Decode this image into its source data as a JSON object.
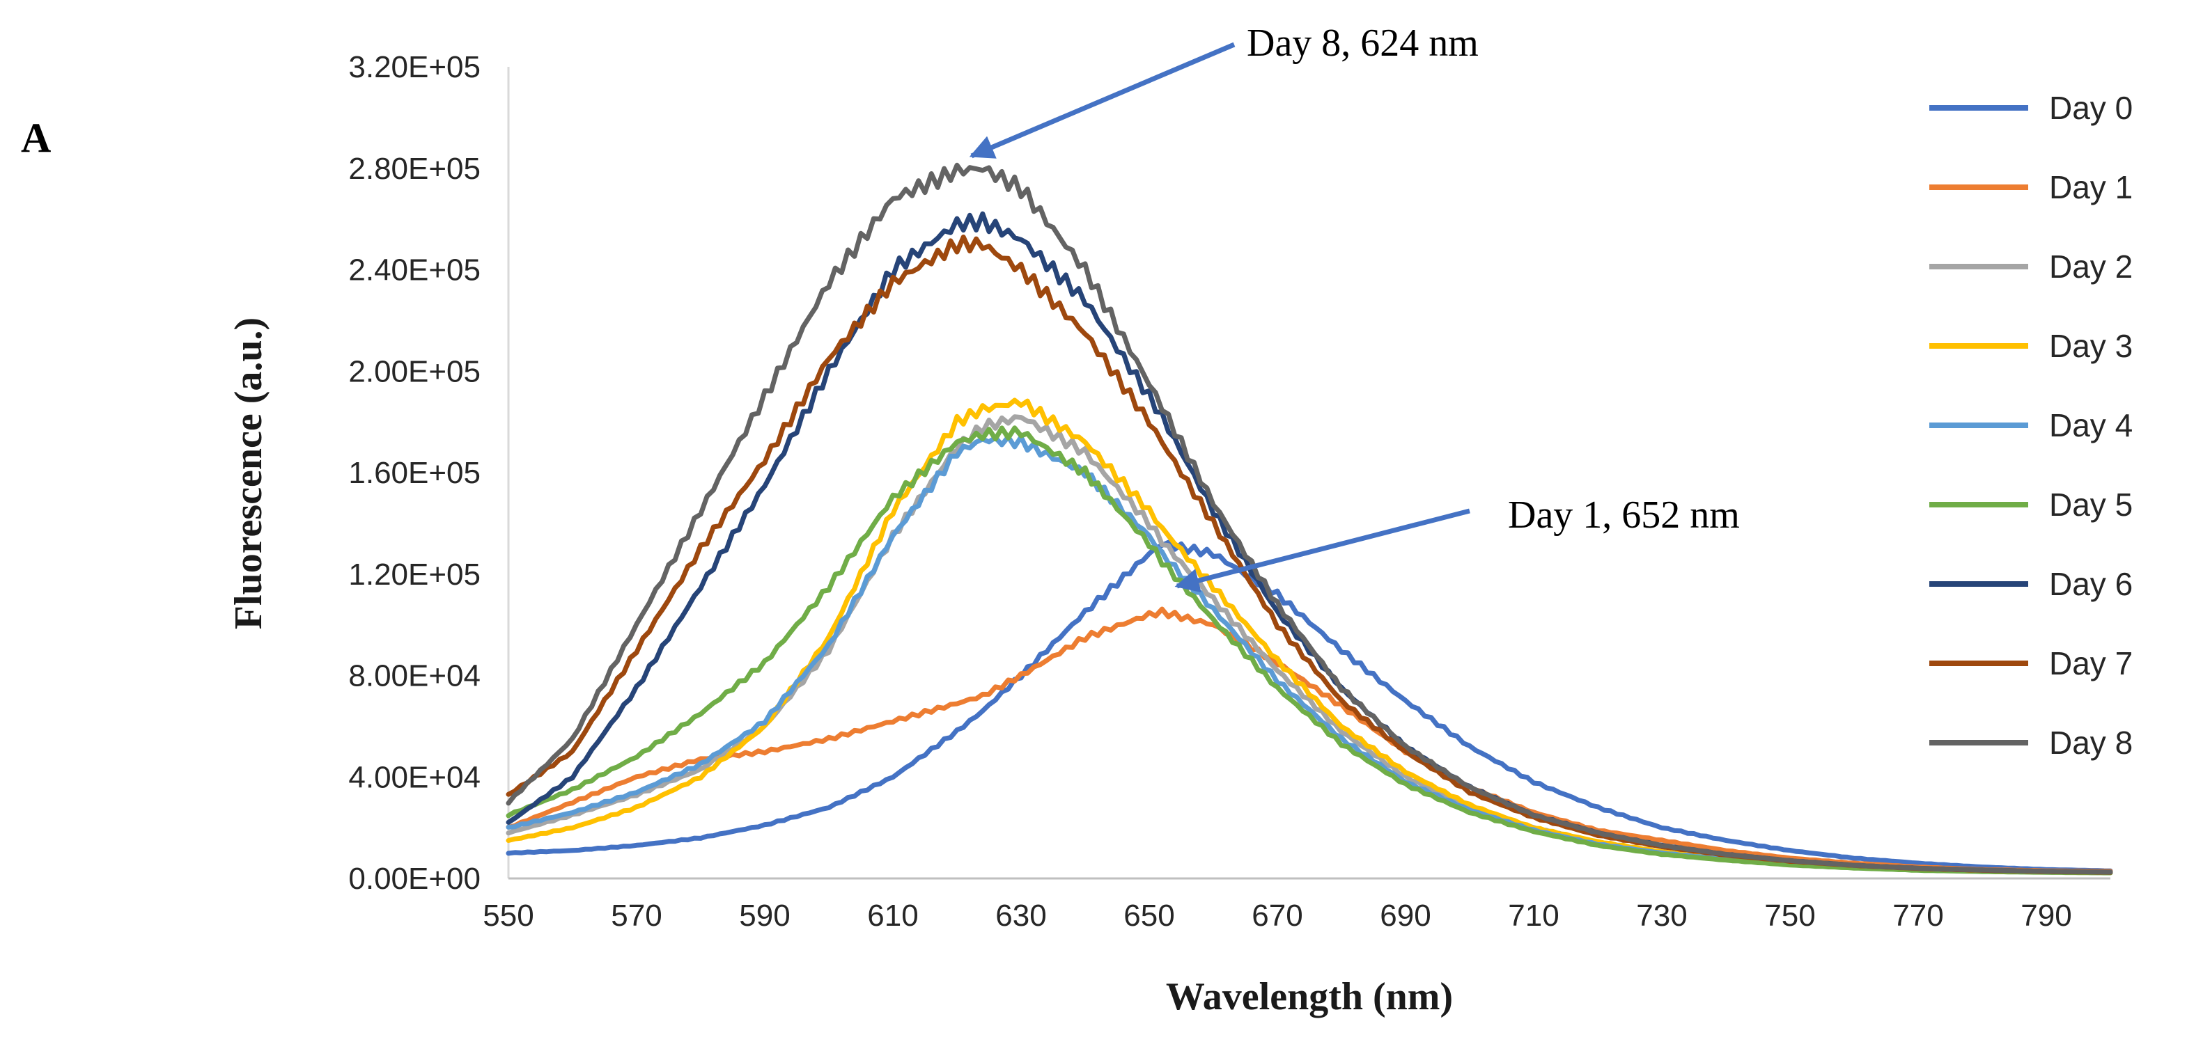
{
  "chart_data": {
    "type": "line",
    "panel_label": "A",
    "xlabel": "Wavelength (nm)",
    "ylabel": "Fluorescence (a.u.)",
    "xlim": [
      550,
      800
    ],
    "ylim": [
      0,
      320000
    ],
    "x_ticks": [
      550,
      570,
      590,
      610,
      630,
      650,
      670,
      690,
      710,
      730,
      750,
      770,
      790
    ],
    "y_ticks": [
      0,
      40000,
      80000,
      120000,
      160000,
      200000,
      240000,
      280000,
      320000
    ],
    "y_tick_labels": [
      "0.00E+00",
      "4.00E+04",
      "8.00E+04",
      "1.20E+05",
      "1.60E+05",
      "2.00E+05",
      "2.40E+05",
      "2.80E+05",
      "3.20E+05"
    ],
    "x": [
      550,
      560,
      570,
      580,
      590,
      600,
      610,
      620,
      624,
      630,
      640,
      650,
      652,
      660,
      670,
      680,
      690,
      700,
      710,
      720,
      730,
      740,
      750,
      760,
      770,
      780,
      790,
      800
    ],
    "series": [
      {
        "name": "Day 0",
        "color": "#4472C4",
        "values": [
          10000,
          11000,
          13000,
          16000,
          21000,
          28000,
          40000,
          58000,
          66000,
          80000,
          105000,
          128000,
          132000,
          128000,
          112000,
          90000,
          70000,
          52000,
          38000,
          28000,
          20000,
          15000,
          11000,
          8000,
          6000,
          4500,
          3500,
          3000
        ]
      },
      {
        "name": "Day 1",
        "color": "#ED7D31",
        "values": [
          20000,
          30000,
          40000,
          47000,
          50000,
          55000,
          62000,
          69000,
          72000,
          80000,
          95000,
          104000,
          105000,
          100000,
          85000,
          68000,
          50000,
          36000,
          26000,
          19000,
          15000,
          11000,
          8000,
          6000,
          4500,
          3500,
          3000,
          2800
        ]
      },
      {
        "name": "Day 2",
        "color": "#A5A5A5",
        "values": [
          18000,
          25000,
          33000,
          43000,
          60000,
          90000,
          135000,
          170000,
          178000,
          182000,
          168000,
          140000,
          133000,
          110000,
          82000,
          58000,
          40000,
          28000,
          20000,
          14000,
          10000,
          7500,
          5500,
          4200,
          3300,
          2800,
          2500,
          2300
        ]
      },
      {
        "name": "Day 3",
        "color": "#FFC000",
        "values": [
          15000,
          20000,
          28000,
          40000,
          60000,
          95000,
          145000,
          180000,
          185000,
          188000,
          172000,
          145000,
          138000,
          115000,
          86000,
          60000,
          42000,
          29000,
          20000,
          14500,
          10500,
          7800,
          5800,
          4400,
          3400,
          2900,
          2500,
          2300
        ]
      },
      {
        "name": "Day 4",
        "color": "#5B9BD5",
        "values": [
          20000,
          26000,
          34000,
          45000,
          62000,
          92000,
          135000,
          168000,
          173000,
          172000,
          160000,
          135000,
          128000,
          106000,
          78000,
          55000,
          38000,
          27000,
          19000,
          13500,
          10000,
          7500,
          5500,
          4200,
          3300,
          2800,
          2500,
          2300
        ]
      },
      {
        "name": "Day 5",
        "color": "#70AD47",
        "values": [
          25000,
          35000,
          48000,
          65000,
          85000,
          115000,
          150000,
          172000,
          175000,
          176000,
          160000,
          132000,
          125000,
          102000,
          75000,
          53000,
          37000,
          26000,
          18500,
          13000,
          9500,
          7200,
          5300,
          4100,
          3200,
          2700,
          2400,
          2200
        ]
      },
      {
        "name": "Day 6",
        "color": "#264478",
        "values": [
          22000,
          40000,
          75000,
          115000,
          155000,
          200000,
          240000,
          258000,
          259000,
          252000,
          228000,
          190000,
          182000,
          145000,
          105000,
          75000,
          52000,
          36000,
          25000,
          18000,
          13000,
          9500,
          7000,
          5200,
          4000,
          3300,
          2800,
          2500
        ]
      },
      {
        "name": "Day 7",
        "color": "#9E480E",
        "values": [
          33000,
          50000,
          90000,
          130000,
          165000,
          205000,
          235000,
          250000,
          250000,
          240000,
          215000,
          180000,
          172000,
          140000,
          100000,
          70000,
          50000,
          34000,
          24000,
          17000,
          12500,
          9200,
          6800,
          5100,
          3900,
          3200,
          2700,
          2400
        ]
      },
      {
        "name": "Day 8",
        "color": "#636363",
        "values": [
          30000,
          55000,
          100000,
          145000,
          190000,
          235000,
          268000,
          279000,
          280000,
          272000,
          240000,
          195000,
          186000,
          148000,
          108000,
          75000,
          52000,
          36000,
          25000,
          18000,
          13000,
          9500,
          7000,
          5200,
          4000,
          3300,
          2800,
          2500
        ]
      }
    ],
    "annotations": [
      {
        "text": "Day 8, 624 nm",
        "points_to": {
          "x": 624,
          "y": 280000
        }
      },
      {
        "text": "Day 1, 652 nm",
        "points_to": {
          "x": 655,
          "y": 115000
        }
      }
    ],
    "legend_position": "right",
    "grid": false
  }
}
